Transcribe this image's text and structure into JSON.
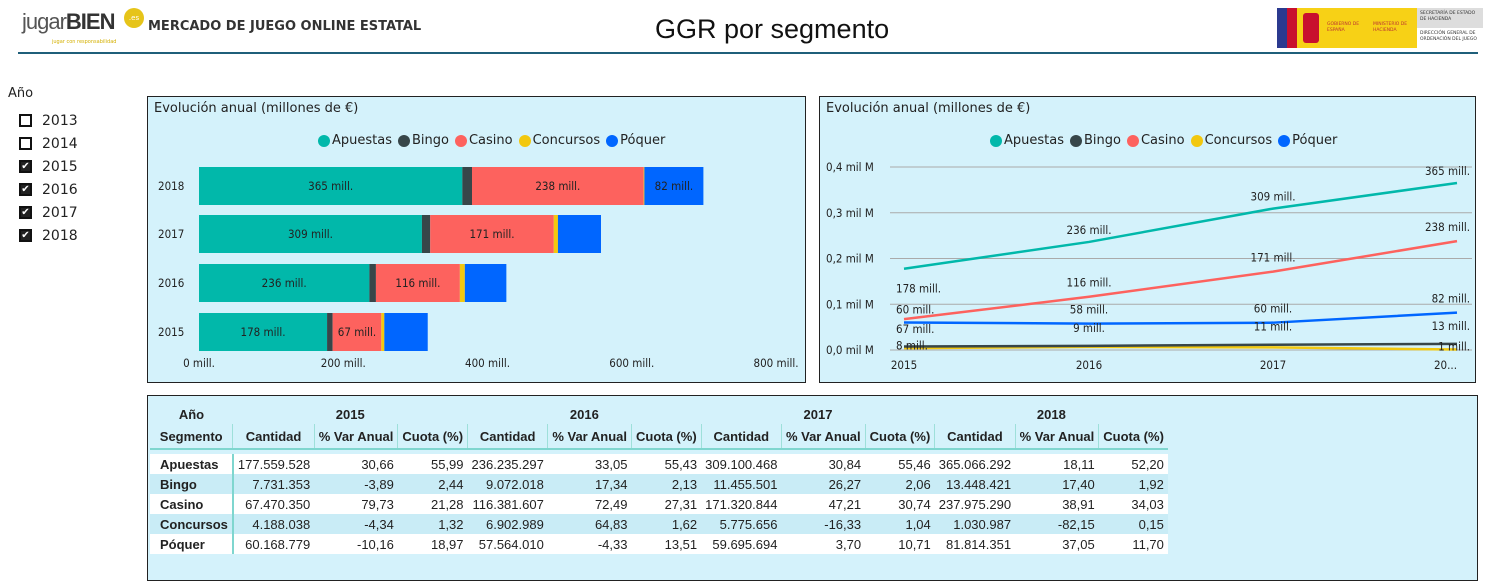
{
  "header": {
    "logo_text": "jugarBIEN.es",
    "logo_tagline": "jugar con responsabilidad",
    "report_title": "MERCADO DE JUEGO ONLINE ESTATAL",
    "page_title": "GGR por segmento",
    "gov_logo": {
      "left": "GOBIERNO DE ESPAÑA",
      "middle": "MINISTERIO DE HACIENDA",
      "top_right": "SECRETARÍA DE ESTADO DE HACIENDA",
      "bottom_right": "DIRECCIÓN GENERAL DE ORDENACIÓN DEL JUEGO"
    }
  },
  "slicer": {
    "title": "Año",
    "items": [
      {
        "label": "2013",
        "checked": false
      },
      {
        "label": "2014",
        "checked": false
      },
      {
        "label": "2015",
        "checked": true
      },
      {
        "label": "2016",
        "checked": true
      },
      {
        "label": "2017",
        "checked": true
      },
      {
        "label": "2018",
        "checked": true
      }
    ]
  },
  "colors": {
    "Apuestas": "#01b8aa",
    "Bingo": "#374649",
    "Casino": "#fd625e",
    "Concursos": "#f2c80f",
    "Póquer": "#0066ff"
  },
  "legend": [
    "Apuestas",
    "Bingo",
    "Casino",
    "Concursos",
    "Póquer"
  ],
  "chart_data": [
    {
      "type": "bar",
      "orientation": "horizontal",
      "stacked": true,
      "title": "Evolución anual (millones de €)",
      "categories": [
        "2018",
        "2017",
        "2016",
        "2015"
      ],
      "xlim": [
        0,
        800
      ],
      "xticks": [
        "0 mill.",
        "200 mill.",
        "400 mill.",
        "600 mill.",
        "800 mill."
      ],
      "series": [
        {
          "name": "Apuestas",
          "values": [
            365.07,
            309.1,
            236.24,
            177.56
          ],
          "labels": [
            "365 mill.",
            "309 mill.",
            "236 mill.",
            "178 mill."
          ]
        },
        {
          "name": "Bingo",
          "values": [
            13.45,
            11.46,
            9.07,
            7.73
          ],
          "labels": [
            "",
            "",
            "",
            ""
          ]
        },
        {
          "name": "Casino",
          "values": [
            237.98,
            171.32,
            116.38,
            67.47
          ],
          "labels": [
            "238 mill.",
            "171 mill.",
            "116 mill.",
            "67 mill."
          ]
        },
        {
          "name": "Concursos",
          "values": [
            1.03,
            5.78,
            6.9,
            4.19
          ],
          "labels": [
            "",
            "",
            "",
            ""
          ]
        },
        {
          "name": "Póquer",
          "values": [
            81.81,
            59.7,
            57.56,
            60.17
          ],
          "labels": [
            "82 mill.",
            "",
            "",
            ""
          ]
        }
      ]
    },
    {
      "type": "line",
      "title": "Evolución anual (millones de €)",
      "x": [
        "2015",
        "2016",
        "2017",
        "20..."
      ],
      "ylim": [
        0,
        0.4
      ],
      "yticks": [
        "0,0 mil M",
        "0,1 mil M",
        "0,2 mil M",
        "0,3 mil M",
        "0,4 mil M"
      ],
      "grid": true,
      "series": [
        {
          "name": "Apuestas",
          "values": [
            0.1776,
            0.2362,
            0.3091,
            0.3651
          ],
          "labels": [
            "178 mill.",
            "236 mill.",
            "309 mill.",
            "365 mill."
          ]
        },
        {
          "name": "Bingo",
          "values": [
            0.0077,
            0.0091,
            0.0115,
            0.0134
          ],
          "labels": [
            "8 mill.",
            "9 mill.",
            "11 mill.",
            "13 mill."
          ]
        },
        {
          "name": "Casino",
          "values": [
            0.0675,
            0.1164,
            0.1713,
            0.238
          ],
          "labels": [
            "67 mill.",
            "116 mill.",
            "171 mill.",
            "238 mill."
          ]
        },
        {
          "name": "Concursos",
          "values": [
            0.0042,
            0.0069,
            0.0058,
            0.001
          ],
          "labels": [
            "",
            "",
            "",
            "1 mill."
          ]
        },
        {
          "name": "Póquer",
          "values": [
            0.0602,
            0.0576,
            0.0597,
            0.0818
          ],
          "labels": [
            "60 mill.",
            "58 mill.",
            "60 mill.",
            "82 mill."
          ]
        }
      ]
    }
  ],
  "table": {
    "corner_top": "Año",
    "corner_bottom": "Segmento",
    "years": [
      "2015",
      "2016",
      "2017",
      "2018"
    ],
    "columns": [
      "Cantidad",
      "% Var Anual",
      "Cuota (%)"
    ],
    "rows": [
      {
        "segment": "Apuestas",
        "cells": [
          "177.559.528",
          "30,66",
          "55,99",
          "236.235.297",
          "33,05",
          "55,43",
          "309.100.468",
          "30,84",
          "55,46",
          "365.066.292",
          "18,11",
          "52,20"
        ]
      },
      {
        "segment": "Bingo",
        "cells": [
          "7.731.353",
          "-3,89",
          "2,44",
          "9.072.018",
          "17,34",
          "2,13",
          "11.455.501",
          "26,27",
          "2,06",
          "13.448.421",
          "17,40",
          "1,92"
        ]
      },
      {
        "segment": "Casino",
        "cells": [
          "67.470.350",
          "79,73",
          "21,28",
          "116.381.607",
          "72,49",
          "27,31",
          "171.320.844",
          "47,21",
          "30,74",
          "237.975.290",
          "38,91",
          "34,03"
        ]
      },
      {
        "segment": "Concursos",
        "cells": [
          "4.188.038",
          "-4,34",
          "1,32",
          "6.902.989",
          "64,83",
          "1,62",
          "5.775.656",
          "-16,33",
          "1,04",
          "1.030.987",
          "-82,15",
          "0,15"
        ]
      },
      {
        "segment": "Póquer",
        "cells": [
          "60.168.779",
          "-10,16",
          "18,97",
          "57.564.010",
          "-4,33",
          "13,51",
          "59.695.694",
          "3,70",
          "10,71",
          "81.814.351",
          "37,05",
          "11,70"
        ]
      }
    ]
  }
}
